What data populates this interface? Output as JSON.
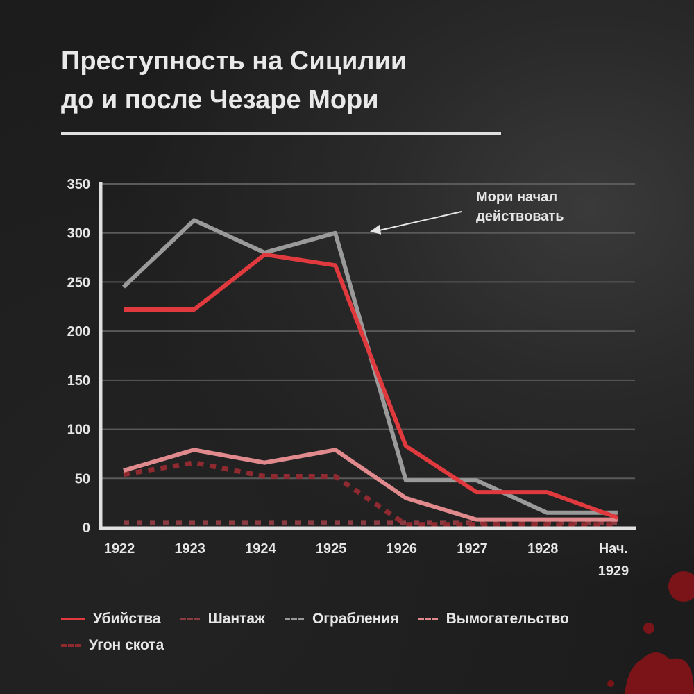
{
  "title_line1": "Преступность на Сицилии",
  "title_line2": "до и после Чезаре Мори",
  "chart_data": {
    "type": "line",
    "title": "Преступность на Сицилии до и после Чезаре Мори",
    "categories": [
      "1922",
      "1923",
      "1924",
      "1925",
      "1926",
      "1927",
      "1928",
      "Нач. 1929"
    ],
    "ylim": [
      0,
      350
    ],
    "yticks": [
      0,
      50,
      100,
      150,
      200,
      250,
      300,
      350
    ],
    "grid": true,
    "legend_position": "bottom",
    "series": [
      {
        "name": "Убийства",
        "color": "#e03a3e",
        "style": "solid",
        "values": [
          222,
          222,
          278,
          267,
          83,
          36,
          36,
          10
        ]
      },
      {
        "name": "Шантаж",
        "color": "#8a3a40",
        "style": "dotted",
        "values": [
          5,
          5,
          5,
          5,
          5,
          5,
          5,
          5
        ]
      },
      {
        "name": "Ограбления",
        "color": "#9a9a9a",
        "style": "solid",
        "values": [
          245,
          313,
          280,
          300,
          48,
          48,
          15,
          15
        ]
      },
      {
        "name": "Вымогательство",
        "color": "#e08a8e",
        "style": "solid",
        "values": [
          58,
          79,
          66,
          79,
          30,
          8,
          8,
          8
        ]
      },
      {
        "name": "Угон скота",
        "color": "#8e2a30",
        "style": "dashed",
        "values": [
          54,
          66,
          52,
          52,
          3,
          3,
          3,
          3
        ]
      }
    ],
    "annotation": {
      "line1": "Мори начал",
      "line2": "действовать",
      "target_category": "1925",
      "target_value": 300
    }
  }
}
